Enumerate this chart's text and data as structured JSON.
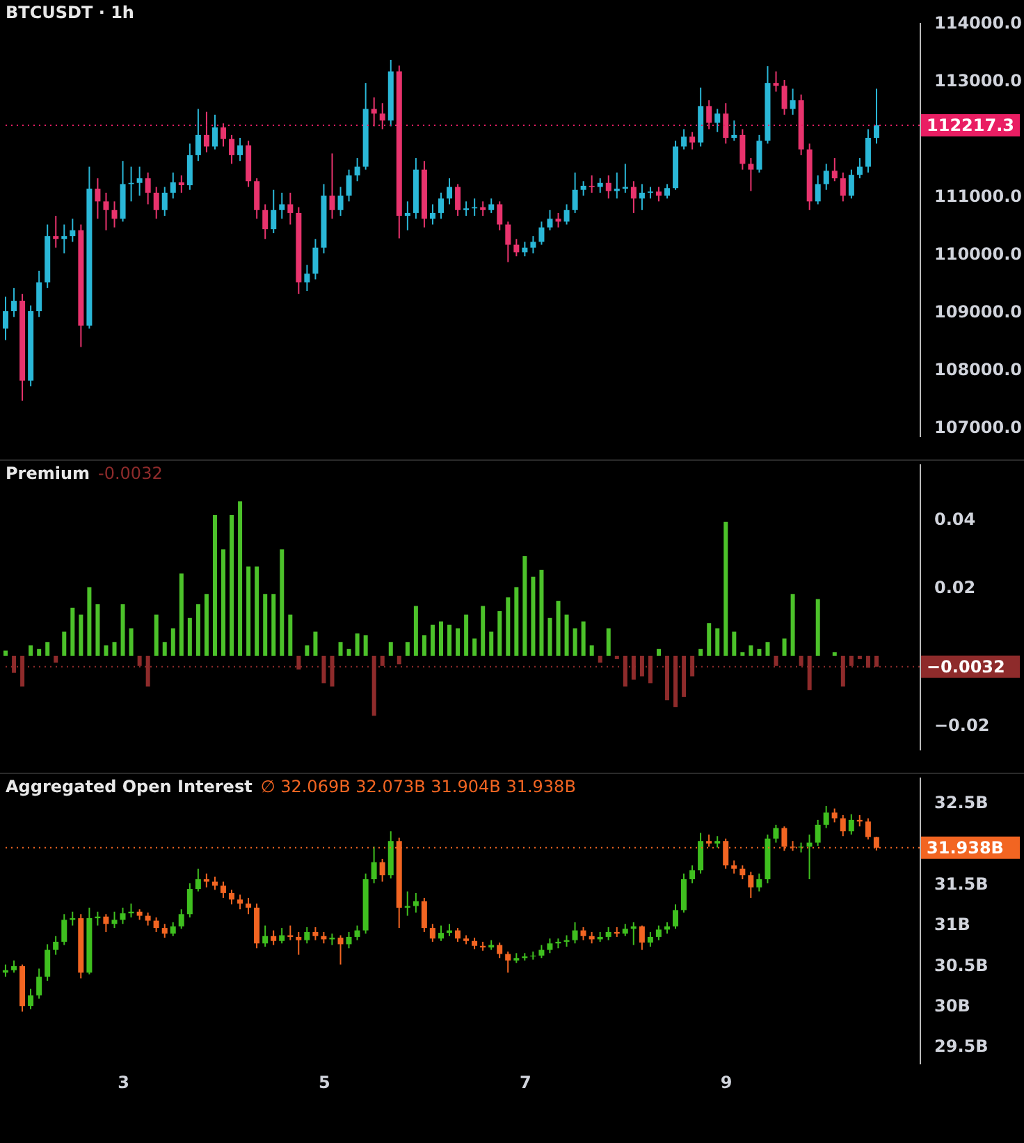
{
  "chart_data": [
    {
      "type": "candlestick",
      "title": "BTCUSDT · 1h",
      "tick_labels": "y",
      "categories": [
        null,
        null,
        null,
        null,
        null,
        null,
        null,
        null,
        null,
        null,
        null,
        null,
        null,
        null,
        null,
        null,
        null,
        null,
        null,
        null,
        null,
        null,
        null,
        null,
        null,
        null,
        null,
        null,
        null,
        null,
        null,
        null,
        null,
        null,
        null,
        null,
        null,
        null,
        null,
        null,
        null,
        null,
        null,
        null,
        null,
        null,
        null,
        null,
        null,
        null,
        null,
        null,
        null,
        null,
        null,
        null,
        null,
        null,
        null,
        null,
        null,
        null,
        null,
        null,
        null,
        null,
        null,
        null,
        null,
        null,
        null,
        null,
        null,
        null,
        null,
        null,
        null,
        null,
        null,
        null,
        null,
        null,
        null,
        null,
        null,
        null,
        null,
        null,
        null,
        null,
        null,
        null,
        null,
        null,
        null,
        null,
        null,
        null,
        null,
        null,
        null,
        null,
        null,
        null,
        null
      ],
      "ohlc": [
        [
          108700,
          109250,
          108500,
          109000
        ],
        [
          109000,
          109400,
          108900,
          109180
        ],
        [
          109180,
          109300,
          107450,
          107800
        ],
        [
          107800,
          109100,
          107700,
          109000
        ],
        [
          109000,
          109700,
          108900,
          109500
        ],
        [
          109500,
          110500,
          109400,
          110300
        ],
        [
          110300,
          110650,
          110100,
          110250
        ],
        [
          110250,
          110500,
          110000,
          110300
        ],
        [
          110300,
          110600,
          110200,
          110400
        ],
        [
          110400,
          110500,
          108380,
          108750
        ],
        [
          108750,
          111500,
          108700,
          111120
        ],
        [
          111120,
          111300,
          110600,
          110900
        ],
        [
          110900,
          111050,
          110400,
          110750
        ],
        [
          110750,
          110900,
          110450,
          110600
        ],
        [
          110600,
          111600,
          110550,
          111200
        ],
        [
          111200,
          111500,
          110900,
          111220
        ],
        [
          111220,
          111500,
          111000,
          111300
        ],
        [
          111300,
          111400,
          110850,
          111050
        ],
        [
          111050,
          111150,
          110600,
          110750
        ],
        [
          110750,
          111150,
          110650,
          111050
        ],
        [
          111050,
          111400,
          110950,
          111230
        ],
        [
          111230,
          111350,
          111050,
          111180
        ],
        [
          111180,
          111900,
          111100,
          111700
        ],
        [
          111700,
          112500,
          111600,
          112050
        ],
        [
          112050,
          112450,
          111750,
          111850
        ],
        [
          111850,
          112400,
          111800,
          112180
        ],
        [
          112180,
          112250,
          111850,
          111980
        ],
        [
          111980,
          112050,
          111550,
          111700
        ],
        [
          111700,
          112000,
          111600,
          111870
        ],
        [
          111870,
          111950,
          111150,
          111250
        ],
        [
          111250,
          111300,
          110600,
          110750
        ],
        [
          110750,
          110850,
          110250,
          110420
        ],
        [
          110420,
          111100,
          110350,
          110750
        ],
        [
          110750,
          111050,
          110600,
          110850
        ],
        [
          110850,
          111050,
          110500,
          110700
        ],
        [
          110700,
          110800,
          109300,
          109500
        ],
        [
          109500,
          109800,
          109350,
          109650
        ],
        [
          109650,
          110250,
          109550,
          110100
        ],
        [
          110100,
          111200,
          110000,
          111000
        ],
        [
          111000,
          111730,
          110600,
          110750
        ],
        [
          110750,
          111150,
          110650,
          111000
        ],
        [
          111000,
          111450,
          110900,
          111350
        ],
        [
          111350,
          111650,
          111250,
          111500
        ],
        [
          111500,
          112950,
          111450,
          112500
        ],
        [
          112500,
          112700,
          112200,
          112420
        ],
        [
          112420,
          112600,
          112150,
          112300
        ],
        [
          112300,
          113350,
          112200,
          113150
        ],
        [
          113150,
          113250,
          110260,
          110650
        ],
        [
          110650,
          110900,
          110400,
          110700
        ],
        [
          110700,
          111650,
          110600,
          111450
        ],
        [
          111450,
          111600,
          110450,
          110600
        ],
        [
          110600,
          110850,
          110500,
          110700
        ],
        [
          110700,
          111050,
          110600,
          110950
        ],
        [
          110950,
          111300,
          110850,
          111150
        ],
        [
          111150,
          111200,
          110650,
          110750
        ],
        [
          110750,
          110900,
          110650,
          110780
        ],
        [
          110780,
          110950,
          110650,
          110800
        ],
        [
          110800,
          110900,
          110650,
          110750
        ],
        [
          110750,
          110950,
          110700,
          110850
        ],
        [
          110850,
          110900,
          110400,
          110500
        ],
        [
          110500,
          110550,
          109850,
          110150
        ],
        [
          110150,
          110250,
          109950,
          110020
        ],
        [
          110020,
          110200,
          109950,
          110100
        ],
        [
          110100,
          110300,
          110000,
          110200
        ],
        [
          110200,
          110550,
          110150,
          110450
        ],
        [
          110450,
          110750,
          110400,
          110600
        ],
        [
          110600,
          110700,
          110450,
          110550
        ],
        [
          110550,
          110850,
          110500,
          110750
        ],
        [
          110750,
          111400,
          110700,
          111100
        ],
        [
          111100,
          111250,
          111000,
          111170
        ],
        [
          111170,
          111350,
          111050,
          111150
        ],
        [
          111150,
          111300,
          111050,
          111220
        ],
        [
          111220,
          111350,
          110950,
          111080
        ],
        [
          111080,
          111400,
          110950,
          111120
        ],
        [
          111120,
          111550,
          111050,
          111150
        ],
        [
          111150,
          111250,
          110700,
          110950
        ],
        [
          110950,
          111200,
          110750,
          111050
        ],
        [
          111050,
          111150,
          110950,
          111070
        ],
        [
          111070,
          111150,
          110900,
          111000
        ],
        [
          111000,
          111200,
          110950,
          111130
        ],
        [
          111130,
          111950,
          111100,
          111850
        ],
        [
          111850,
          112150,
          111800,
          112020
        ],
        [
          112020,
          112100,
          111800,
          111920
        ],
        [
          111920,
          112870,
          111850,
          112550
        ],
        [
          112550,
          112650,
          112150,
          112260
        ],
        [
          112260,
          112500,
          112100,
          112420
        ],
        [
          112420,
          112600,
          111900,
          112000
        ],
        [
          112000,
          112300,
          111950,
          112050
        ],
        [
          112050,
          112150,
          111450,
          111550
        ],
        [
          111550,
          111650,
          111080,
          111450
        ],
        [
          111450,
          112050,
          111400,
          111950
        ],
        [
          111950,
          113240,
          111900,
          112950
        ],
        [
          112950,
          113150,
          112800,
          112900
        ],
        [
          112900,
          113000,
          112400,
          112500
        ],
        [
          112500,
          112850,
          112400,
          112650
        ],
        [
          112650,
          112750,
          111700,
          111800
        ],
        [
          111800,
          111900,
          110750,
          110900
        ],
        [
          110900,
          111350,
          110850,
          111200
        ],
        [
          111200,
          111550,
          111100,
          111430
        ],
        [
          111430,
          111650,
          111250,
          111300
        ],
        [
          111300,
          111400,
          110900,
          111000
        ],
        [
          111000,
          111450,
          110950,
          111360
        ],
        [
          111360,
          111650,
          111300,
          111500
        ],
        [
          111500,
          112150,
          111400,
          112000
        ],
        [
          112000,
          112850,
          111900,
          112217.3
        ]
      ],
      "colors": [
        "#2ab7d7",
        "#2ab7d7",
        "#e8336d",
        "#2ab7d7",
        "#2ab7d7",
        "#2ab7d7",
        "#e8336d",
        "#2ab7d7",
        "#2ab7d7",
        "#e8336d",
        "#2ab7d7",
        "#e8336d",
        "#e8336d",
        "#e8336d",
        "#2ab7d7",
        "#2ab7d7",
        "#2ab7d7",
        "#e8336d",
        "#e8336d",
        "#2ab7d7",
        "#2ab7d7",
        "#e8336d",
        "#2ab7d7",
        "#2ab7d7",
        "#e8336d",
        "#2ab7d7",
        "#e8336d",
        "#e8336d",
        "#2ab7d7",
        "#e8336d",
        "#e8336d",
        "#e8336d",
        "#2ab7d7",
        "#2ab7d7",
        "#e8336d",
        "#e8336d",
        "#2ab7d7",
        "#2ab7d7",
        "#2ab7d7",
        "#e8336d",
        "#2ab7d7",
        "#2ab7d7",
        "#2ab7d7",
        "#2ab7d7",
        "#e8336d",
        "#e8336d",
        "#2ab7d7",
        "#e8336d",
        "#2ab7d7",
        "#2ab7d7",
        "#e8336d",
        "#2ab7d7",
        "#2ab7d7",
        "#2ab7d7",
        "#e8336d",
        "#2ab7d7",
        "#2ab7d7",
        "#e8336d",
        "#2ab7d7",
        "#e8336d",
        "#e8336d",
        "#e8336d",
        "#2ab7d7",
        "#2ab7d7",
        "#2ab7d7",
        "#2ab7d7",
        "#e8336d",
        "#2ab7d7",
        "#2ab7d7",
        "#2ab7d7",
        "#e8336d",
        "#2ab7d7",
        "#e8336d",
        "#2ab7d7",
        "#2ab7d7",
        "#e8336d",
        "#2ab7d7",
        "#2ab7d7",
        "#e8336d",
        "#2ab7d7",
        "#2ab7d7",
        "#2ab7d7",
        "#e8336d",
        "#2ab7d7",
        "#e8336d",
        "#2ab7d7",
        "#e8336d",
        "#2ab7d7",
        "#e8336d",
        "#e8336d",
        "#2ab7d7",
        "#2ab7d7",
        "#e8336d",
        "#e8336d",
        "#2ab7d7",
        "#e8336d",
        "#e8336d",
        "#2ab7d7",
        "#2ab7d7",
        "#e8336d",
        "#e8336d",
        "#2ab7d7",
        "#2ab7d7",
        "#2ab7d7",
        "#2ab7d7"
      ],
      "ylim": [
        106820,
        114000
      ],
      "yticks": [
        {
          "value": 107000,
          "label": "107000.0"
        },
        {
          "value": 108000,
          "label": "108000.0"
        },
        {
          "value": 109000,
          "label": "109000.0"
        },
        {
          "value": 110000,
          "label": "110000.0"
        },
        {
          "value": 111000,
          "label": "111000.0"
        },
        {
          "value": 113000,
          "label": "113000.0"
        },
        {
          "value": 114000,
          "label": "114000.0"
        }
      ],
      "ref_lines": [
        {
          "axis": "y",
          "value": 112217.3,
          "label": "112217.3",
          "color": "#e91e63",
          "line_style": "dotted"
        }
      ]
    },
    {
      "type": "bar",
      "title": "Premium",
      "annotations": [
        "-0.0032"
      ],
      "tick_labels": "y",
      "categories": [
        null,
        null,
        null,
        null,
        null,
        null,
        null,
        null,
        null,
        null,
        null,
        null,
        null,
        null,
        null,
        null,
        null,
        null,
        null,
        null,
        null,
        null,
        null,
        null,
        null,
        null,
        null,
        null,
        null,
        null,
        null,
        null,
        null,
        null,
        null,
        null,
        null,
        null,
        null,
        null,
        null,
        null,
        null,
        null,
        null,
        null,
        null,
        null,
        null,
        null,
        null,
        null,
        null,
        null,
        null,
        null,
        null,
        null,
        null,
        null,
        null,
        null,
        null,
        null,
        null,
        null,
        null,
        null,
        null,
        null,
        null,
        null,
        null,
        null,
        null,
        null,
        null,
        null,
        null,
        null,
        null,
        null,
        null,
        null,
        null,
        null,
        null,
        null,
        null,
        null,
        null,
        null,
        null,
        null,
        null,
        null,
        null,
        null,
        null,
        null,
        null,
        null,
        null,
        null,
        null
      ],
      "values": [
        0.0015,
        -0.005,
        -0.009,
        0.003,
        0.002,
        0.004,
        -0.002,
        0.007,
        0.014,
        0.012,
        0.02,
        0.015,
        0.003,
        0.004,
        0.015,
        0.008,
        -0.003,
        -0.009,
        0.012,
        0.004,
        0.008,
        0.024,
        0.011,
        0.015,
        0.018,
        0.041,
        0.031,
        0.041,
        0.045,
        0.026,
        0.026,
        0.018,
        0.018,
        0.031,
        0.012,
        -0.004,
        0.003,
        0.007,
        -0.008,
        -0.009,
        0.004,
        0.002,
        0.0065,
        0.006,
        -0.0175,
        -0.003,
        0.004,
        -0.0025,
        0.004,
        0.0145,
        0.006,
        0.009,
        0.01,
        0.009,
        0.008,
        0.012,
        0.005,
        0.0145,
        0.007,
        0.013,
        0.017,
        0.02,
        0.029,
        0.023,
        0.025,
        0.011,
        0.016,
        0.012,
        0.008,
        0.01,
        0.003,
        -0.002,
        0.008,
        -0.001,
        -0.009,
        -0.007,
        -0.006,
        -0.008,
        0.002,
        -0.013,
        -0.015,
        -0.012,
        -0.006,
        0.002,
        0.0095,
        0.008,
        0.039,
        0.007,
        0.001,
        0.003,
        0.002,
        0.004,
        -0.003,
        0.005,
        0.018,
        -0.003,
        -0.01,
        0.0165,
        0,
        0.001,
        -0.009,
        -0.003,
        -0.001,
        -0.0035,
        -0.0032
      ],
      "colors": [
        "#4cc22a",
        "#8e2b2b",
        "#8e2b2b",
        "#4cc22a",
        "#4cc22a",
        "#4cc22a",
        "#8e2b2b",
        "#4cc22a",
        "#4cc22a",
        "#4cc22a",
        "#4cc22a",
        "#4cc22a",
        "#4cc22a",
        "#4cc22a",
        "#4cc22a",
        "#4cc22a",
        "#8e2b2b",
        "#8e2b2b",
        "#4cc22a",
        "#4cc22a",
        "#4cc22a",
        "#4cc22a",
        "#4cc22a",
        "#4cc22a",
        "#4cc22a",
        "#4cc22a",
        "#4cc22a",
        "#4cc22a",
        "#4cc22a",
        "#4cc22a",
        "#4cc22a",
        "#4cc22a",
        "#4cc22a",
        "#4cc22a",
        "#4cc22a",
        "#8e2b2b",
        "#4cc22a",
        "#4cc22a",
        "#8e2b2b",
        "#8e2b2b",
        "#4cc22a",
        "#4cc22a",
        "#4cc22a",
        "#4cc22a",
        "#8e2b2b",
        "#8e2b2b",
        "#4cc22a",
        "#8e2b2b",
        "#4cc22a",
        "#4cc22a",
        "#4cc22a",
        "#4cc22a",
        "#4cc22a",
        "#4cc22a",
        "#4cc22a",
        "#4cc22a",
        "#4cc22a",
        "#4cc22a",
        "#4cc22a",
        "#4cc22a",
        "#4cc22a",
        "#4cc22a",
        "#4cc22a",
        "#4cc22a",
        "#4cc22a",
        "#4cc22a",
        "#4cc22a",
        "#4cc22a",
        "#4cc22a",
        "#4cc22a",
        "#4cc22a",
        "#8e2b2b",
        "#4cc22a",
        "#8e2b2b",
        "#8e2b2b",
        "#8e2b2b",
        "#8e2b2b",
        "#8e2b2b",
        "#4cc22a",
        "#8e2b2b",
        "#8e2b2b",
        "#8e2b2b",
        "#8e2b2b",
        "#4cc22a",
        "#4cc22a",
        "#4cc22a",
        "#4cc22a",
        "#4cc22a",
        "#4cc22a",
        "#4cc22a",
        "#4cc22a",
        "#4cc22a",
        "#8e2b2b",
        "#4cc22a",
        "#4cc22a",
        "#8e2b2b",
        "#8e2b2b",
        "#4cc22a",
        "#4cc22a",
        "#4cc22a",
        "#8e2b2b",
        "#8e2b2b",
        "#8e2b2b",
        "#8e2b2b",
        "#8e2b2b"
      ],
      "ylim": [
        -0.0276,
        0.056
      ],
      "yticks": [
        {
          "value": -0.02,
          "label": "−0.02"
        },
        0.02,
        0.04
      ],
      "ref_lines": [
        {
          "axis": "y",
          "value": -0.0032,
          "label": "−0.0032",
          "color": "#8e2b2b",
          "line_style": "dotted"
        }
      ]
    },
    {
      "type": "candlestick",
      "title": "Aggregated Open Interest",
      "annotations": [
        "∅ 32.069B 32.073B 31.904B 31.938B"
      ],
      "x": [
        1.833,
        1.917,
        2,
        2.083,
        2.167,
        2.25,
        2.333,
        2.417,
        2.5,
        2.583,
        2.667,
        2.75,
        2.833,
        2.917,
        3,
        3.083,
        3.167,
        3.25,
        3.333,
        3.417,
        3.5,
        3.583,
        3.667,
        3.75,
        3.833,
        3.917,
        4,
        4.083,
        4.167,
        4.25,
        4.333,
        4.417,
        4.5,
        4.583,
        4.667,
        4.75,
        4.833,
        4.917,
        5,
        5.083,
        5.167,
        5.25,
        5.333,
        5.417,
        5.5,
        5.583,
        5.667,
        5.75,
        5.833,
        5.917,
        6,
        6.083,
        6.167,
        6.25,
        6.333,
        6.417,
        6.5,
        6.583,
        6.667,
        6.75,
        6.833,
        6.917,
        7,
        7.083,
        7.167,
        7.25,
        7.333,
        7.417,
        7.5,
        7.583,
        7.667,
        7.75,
        7.833,
        7.917,
        8,
        8.083,
        8.167,
        8.25,
        8.333,
        8.417,
        8.5,
        8.583,
        8.667,
        8.75,
        8.833,
        8.917,
        9,
        9.083,
        9.167,
        9.25,
        9.333,
        9.417,
        9.5,
        9.583,
        9.667,
        9.75,
        9.833,
        9.917,
        10,
        10.083,
        10.167,
        10.25,
        10.333,
        10.417,
        10.5
      ],
      "ohlc": [
        [
          30.4,
          30.5,
          30.35,
          30.43
        ],
        [
          30.43,
          30.55,
          30.4,
          30.48
        ],
        [
          30.48,
          30.5,
          29.92,
          29.99
        ],
        [
          29.99,
          30.2,
          29.95,
          30.12
        ],
        [
          30.12,
          30.45,
          30.08,
          30.35
        ],
        [
          30.35,
          30.75,
          30.3,
          30.68
        ],
        [
          30.68,
          30.85,
          30.62,
          30.78
        ],
        [
          30.78,
          31.12,
          30.74,
          31.05
        ],
        [
          31.05,
          31.15,
          30.98,
          31.07
        ],
        [
          31.07,
          31.12,
          30.33,
          30.4
        ],
        [
          30.4,
          31.2,
          30.38,
          31.07
        ],
        [
          31.07,
          31.15,
          30.98,
          31.09
        ],
        [
          31.09,
          31.12,
          30.9,
          31.0
        ],
        [
          31.0,
          31.15,
          30.95,
          31.05
        ],
        [
          31.05,
          31.2,
          31.0,
          31.13
        ],
        [
          31.13,
          31.25,
          31.08,
          31.15
        ],
        [
          31.15,
          31.18,
          31.05,
          31.1
        ],
        [
          31.1,
          31.14,
          30.98,
          31.04
        ],
        [
          31.04,
          31.08,
          30.9,
          30.95
        ],
        [
          30.95,
          31.0,
          30.83,
          30.88
        ],
        [
          30.88,
          31.02,
          30.85,
          30.97
        ],
        [
          30.97,
          31.18,
          30.94,
          31.12
        ],
        [
          31.12,
          31.5,
          31.08,
          31.43
        ],
        [
          31.43,
          31.68,
          31.4,
          31.55
        ],
        [
          31.55,
          31.62,
          31.45,
          31.52
        ],
        [
          31.52,
          31.58,
          31.42,
          31.47
        ],
        [
          31.47,
          31.52,
          31.32,
          31.38
        ],
        [
          31.38,
          31.42,
          31.24,
          31.3
        ],
        [
          31.3,
          31.36,
          31.18,
          31.25
        ],
        [
          31.25,
          31.32,
          31.12,
          31.2
        ],
        [
          31.2,
          31.25,
          30.7,
          30.76
        ],
        [
          30.76,
          30.98,
          30.72,
          30.85
        ],
        [
          30.85,
          30.92,
          30.74,
          30.79
        ],
        [
          30.79,
          30.95,
          30.76,
          30.86
        ],
        [
          30.86,
          30.98,
          30.8,
          30.84
        ],
        [
          30.84,
          30.9,
          30.62,
          30.8
        ],
        [
          30.8,
          30.96,
          30.76,
          30.9
        ],
        [
          30.9,
          30.96,
          30.8,
          30.85
        ],
        [
          30.85,
          30.9,
          30.76,
          30.81
        ],
        [
          30.81,
          30.88,
          30.74,
          30.83
        ],
        [
          30.83,
          30.86,
          30.5,
          30.75
        ],
        [
          30.75,
          30.9,
          30.7,
          30.84
        ],
        [
          30.84,
          30.98,
          30.8,
          30.92
        ],
        [
          30.92,
          31.62,
          30.88,
          31.55
        ],
        [
          31.55,
          31.95,
          31.5,
          31.76
        ],
        [
          31.76,
          31.8,
          31.52,
          31.6
        ],
        [
          31.6,
          32.14,
          31.56,
          32.02
        ],
        [
          32.02,
          32.06,
          30.95,
          31.2
        ],
        [
          31.2,
          31.4,
          31.1,
          31.22
        ],
        [
          31.22,
          31.38,
          31.14,
          31.28
        ],
        [
          31.28,
          31.32,
          30.9,
          30.95
        ],
        [
          30.95,
          31.0,
          30.78,
          30.82
        ],
        [
          30.82,
          30.98,
          30.79,
          30.89
        ],
        [
          30.89,
          31.0,
          30.85,
          30.92
        ],
        [
          30.92,
          30.95,
          30.78,
          30.82
        ],
        [
          30.82,
          30.86,
          30.75,
          30.79
        ],
        [
          30.79,
          30.83,
          30.69,
          30.73
        ],
        [
          30.73,
          30.78,
          30.67,
          30.71
        ],
        [
          30.71,
          30.8,
          30.68,
          30.74
        ],
        [
          30.74,
          30.77,
          30.58,
          30.63
        ],
        [
          30.63,
          30.66,
          30.4,
          30.55
        ],
        [
          30.55,
          30.64,
          30.52,
          30.58
        ],
        [
          30.58,
          30.64,
          30.55,
          30.6
        ],
        [
          30.6,
          30.66,
          30.56,
          30.61
        ],
        [
          30.61,
          30.74,
          30.58,
          30.68
        ],
        [
          30.68,
          30.82,
          30.64,
          30.76
        ],
        [
          30.76,
          30.82,
          30.7,
          30.78
        ],
        [
          30.78,
          30.86,
          30.72,
          30.8
        ],
        [
          30.8,
          31.02,
          30.76,
          30.92
        ],
        [
          30.92,
          30.96,
          30.8,
          30.85
        ],
        [
          30.85,
          30.9,
          30.76,
          30.81
        ],
        [
          30.81,
          30.9,
          30.78,
          30.84
        ],
        [
          30.84,
          30.96,
          30.8,
          30.9
        ],
        [
          30.9,
          30.96,
          30.84,
          30.88
        ],
        [
          30.88,
          31.0,
          30.85,
          30.94
        ],
        [
          30.94,
          31.02,
          30.74,
          30.97
        ],
        [
          30.97,
          30.98,
          30.68,
          30.77
        ],
        [
          30.77,
          30.9,
          30.72,
          30.84
        ],
        [
          30.84,
          30.98,
          30.8,
          30.93
        ],
        [
          30.93,
          31.02,
          30.88,
          30.97
        ],
        [
          30.97,
          31.24,
          30.94,
          31.17
        ],
        [
          31.17,
          31.62,
          31.14,
          31.55
        ],
        [
          31.55,
          31.72,
          31.5,
          31.66
        ],
        [
          31.66,
          32.12,
          31.62,
          32.02
        ],
        [
          32.02,
          32.1,
          31.95,
          31.99
        ],
        [
          31.99,
          32.08,
          31.94,
          32.02
        ],
        [
          32.02,
          32.05,
          31.68,
          31.72
        ],
        [
          31.72,
          31.78,
          31.62,
          31.68
        ],
        [
          31.68,
          31.72,
          31.55,
          31.6
        ],
        [
          31.6,
          31.64,
          31.32,
          31.45
        ],
        [
          31.45,
          31.62,
          31.4,
          31.55
        ],
        [
          31.55,
          32.1,
          31.5,
          32.05
        ],
        [
          32.05,
          32.22,
          32.0,
          32.18
        ],
        [
          32.18,
          32.2,
          31.9,
          31.95
        ],
        [
          31.95,
          32.02,
          31.9,
          31.94
        ],
        [
          31.94,
          32.0,
          31.88,
          31.95
        ],
        [
          31.95,
          32.1,
          31.55,
          32.0
        ],
        [
          32.0,
          32.28,
          31.96,
          32.22
        ],
        [
          32.22,
          32.45,
          32.18,
          32.37
        ],
        [
          32.37,
          32.42,
          32.25,
          32.3
        ],
        [
          32.3,
          32.34,
          32.08,
          32.14
        ],
        [
          32.14,
          32.35,
          32.1,
          32.28
        ],
        [
          32.28,
          32.34,
          32.2,
          32.26
        ],
        [
          32.26,
          32.3,
          32.04,
          32.07
        ],
        [
          32.069,
          32.073,
          31.904,
          31.938
        ]
      ],
      "colors": [
        "#3fbf1f",
        "#3fbf1f",
        "#f26522",
        "#3fbf1f",
        "#3fbf1f",
        "#3fbf1f",
        "#3fbf1f",
        "#3fbf1f",
        "#3fbf1f",
        "#f26522",
        "#3fbf1f",
        "#3fbf1f",
        "#f26522",
        "#3fbf1f",
        "#3fbf1f",
        "#3fbf1f",
        "#f26522",
        "#f26522",
        "#f26522",
        "#f26522",
        "#3fbf1f",
        "#3fbf1f",
        "#3fbf1f",
        "#3fbf1f",
        "#f26522",
        "#f26522",
        "#f26522",
        "#f26522",
        "#f26522",
        "#f26522",
        "#f26522",
        "#3fbf1f",
        "#f26522",
        "#3fbf1f",
        "#f26522",
        "#f26522",
        "#3fbf1f",
        "#f26522",
        "#f26522",
        "#3fbf1f",
        "#f26522",
        "#3fbf1f",
        "#3fbf1f",
        "#3fbf1f",
        "#3fbf1f",
        "#f26522",
        "#3fbf1f",
        "#f26522",
        "#3fbf1f",
        "#3fbf1f",
        "#f26522",
        "#f26522",
        "#3fbf1f",
        "#3fbf1f",
        "#f26522",
        "#f26522",
        "#f26522",
        "#f26522",
        "#3fbf1f",
        "#f26522",
        "#f26522",
        "#3fbf1f",
        "#3fbf1f",
        "#3fbf1f",
        "#3fbf1f",
        "#3fbf1f",
        "#3fbf1f",
        "#3fbf1f",
        "#3fbf1f",
        "#f26522",
        "#f26522",
        "#3fbf1f",
        "#3fbf1f",
        "#f26522",
        "#3fbf1f",
        "#3fbf1f",
        "#f26522",
        "#3fbf1f",
        "#3fbf1f",
        "#3fbf1f",
        "#3fbf1f",
        "#3fbf1f",
        "#3fbf1f",
        "#3fbf1f",
        "#f26522",
        "#3fbf1f",
        "#f26522",
        "#f26522",
        "#f26522",
        "#f26522",
        "#3fbf1f",
        "#3fbf1f",
        "#3fbf1f",
        "#f26522",
        "#f26522",
        "#3fbf1f",
        "#3fbf1f",
        "#3fbf1f",
        "#3fbf1f",
        "#f26522",
        "#f26522",
        "#3fbf1f",
        "#f26522",
        "#f26522",
        "#f26522"
      ],
      "xlim": [
        1.792,
        10.93
      ],
      "xticks": [
        3,
        5,
        7,
        9
      ],
      "ylim": [
        29.28,
        32.81
      ],
      "yticks": [
        {
          "value": 29.5,
          "label": "29.5B"
        },
        {
          "value": 30,
          "label": "30B"
        },
        {
          "value": 30.5,
          "label": "30.5B"
        },
        {
          "value": 31,
          "label": "31B"
        },
        {
          "value": 31.5,
          "label": "31.5B"
        },
        {
          "value": 32.5,
          "label": "32.5B"
        }
      ],
      "ref_lines": [
        {
          "axis": "y",
          "value": 31.938,
          "label": "31.938B",
          "color": "#f26522",
          "line_style": "dotted"
        }
      ]
    }
  ]
}
